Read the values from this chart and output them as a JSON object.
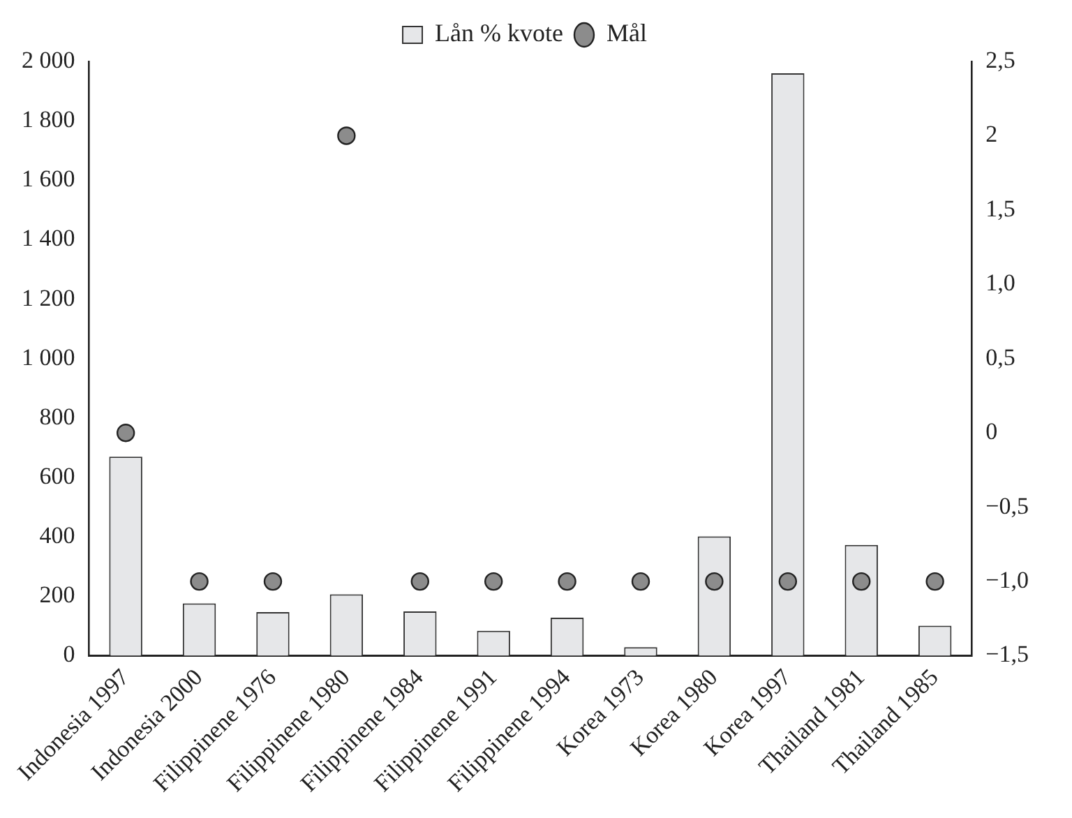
{
  "chart_data": {
    "type": "bar",
    "categories": [
      "Indonesia 1997",
      "Indonesia 2000",
      "Filippinene 1976",
      "Filippinene 1980",
      "Filippinene 1984",
      "Filippinene 1991",
      "Filippinene 1994",
      "Korea 1973",
      "Korea 1980",
      "Korea 1997",
      "Thailand 1981",
      "Thailand 1985"
    ],
    "series": [
      {
        "name": "Lån % kvote",
        "color": "#e6e7e9",
        "values": [
          670,
          176,
          147,
          207,
          149,
          84,
          128,
          29,
          402,
          1960,
          373,
          101
        ]
      },
      {
        "name": "Mål",
        "type": "scatter",
        "axis": "y2",
        "color": "#8c8c8c",
        "values": [
          0,
          -1,
          -1,
          2,
          -1,
          -1,
          -1,
          -1,
          -1,
          -1,
          -1,
          -1
        ]
      }
    ],
    "ylim": [
      0,
      2000
    ],
    "yticks": [
      0,
      200,
      400,
      600,
      800,
      {
        "value": 1000,
        "label": "1 000"
      },
      {
        "value": 1200,
        "label": "1 200"
      },
      {
        "value": 1400,
        "label": "1 400"
      },
      {
        "value": 1600,
        "label": "1 600"
      },
      {
        "value": 1800,
        "label": "1 800"
      },
      {
        "value": 2000,
        "label": "2 000"
      }
    ],
    "y2lim": [
      -1.5,
      2.5
    ],
    "y2ticks": [
      {
        "value": -1.5,
        "label": "−1,5"
      },
      {
        "value": -1,
        "label": "−1,0"
      },
      {
        "value": -0.5,
        "label": "−0,5"
      },
      0,
      {
        "value": 0.5,
        "label": "0,5"
      },
      {
        "value": 1,
        "label": "1,0"
      },
      {
        "value": 1.5,
        "label": "1,5"
      },
      2,
      {
        "value": 2.5,
        "label": "2,5"
      }
    ],
    "legend": "top",
    "grid": false,
    "marker": "circle"
  }
}
